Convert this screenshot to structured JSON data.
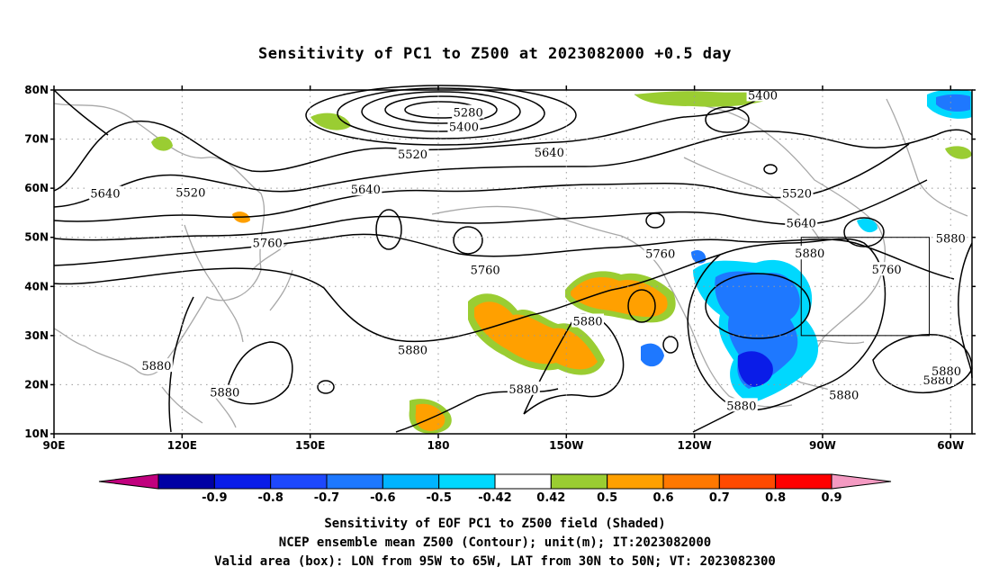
{
  "title": "Sensitivity of PC1 to Z500 at 2023082000 +0.5 day",
  "map": {
    "lon_range": [
      90,
      305
    ],
    "lat_range": [
      10,
      80
    ],
    "lat_ticks": [
      {
        "value": 80,
        "label": "80N"
      },
      {
        "value": 70,
        "label": "70N"
      },
      {
        "value": 60,
        "label": "60N"
      },
      {
        "value": 50,
        "label": "50N"
      },
      {
        "value": 40,
        "label": "40N"
      },
      {
        "value": 30,
        "label": "30N"
      },
      {
        "value": 20,
        "label": "20N"
      },
      {
        "value": 10,
        "label": "10N"
      }
    ],
    "lon_ticks": [
      {
        "value": 90,
        "label": "90E"
      },
      {
        "value": 120,
        "label": "120E"
      },
      {
        "value": 150,
        "label": "150E"
      },
      {
        "value": 180,
        "label": "180"
      },
      {
        "value": 210,
        "label": "150W"
      },
      {
        "value": 240,
        "label": "120W"
      },
      {
        "value": 270,
        "label": "90W"
      },
      {
        "value": 300,
        "label": "60W"
      }
    ],
    "valid_box": {
      "lon": [
        265,
        295
      ],
      "lat": [
        30,
        50
      ]
    },
    "contour_labels": [
      {
        "text": "5280",
        "lon": 187,
        "lat": 75.5
      },
      {
        "text": "5400",
        "lon": 186,
        "lat": 72.6
      },
      {
        "text": "5400",
        "lon": 256,
        "lat": 79.0
      },
      {
        "text": "5520",
        "lon": 174,
        "lat": 67.0
      },
      {
        "text": "5520",
        "lon": 122,
        "lat": 59.2
      },
      {
        "text": "5520",
        "lon": 264,
        "lat": 59.0
      },
      {
        "text": "5640",
        "lon": 102,
        "lat": 59.0
      },
      {
        "text": "5640",
        "lon": 163,
        "lat": 59.8
      },
      {
        "text": "5640",
        "lon": 206,
        "lat": 67.4
      },
      {
        "text": "5640",
        "lon": 265,
        "lat": 53.0
      },
      {
        "text": "5760",
        "lon": 140,
        "lat": 48.9
      },
      {
        "text": "5760",
        "lon": 191,
        "lat": 43.4
      },
      {
        "text": "5760",
        "lon": 232,
        "lat": 46.7
      },
      {
        "text": "5760",
        "lon": 285,
        "lat": 43.5
      },
      {
        "text": "5880",
        "lon": 267,
        "lat": 46.8
      },
      {
        "text": "5880",
        "lon": 300,
        "lat": 49.9
      },
      {
        "text": "5880",
        "lon": 215,
        "lat": 33.0
      },
      {
        "text": "5880",
        "lon": 174,
        "lat": 27.1
      },
      {
        "text": "5880",
        "lon": 114,
        "lat": 23.9
      },
      {
        "text": "5880",
        "lon": 130,
        "lat": 18.5
      },
      {
        "text": "5880",
        "lon": 200,
        "lat": 19.2
      },
      {
        "text": "5880",
        "lon": 251,
        "lat": 15.8
      },
      {
        "text": "5880",
        "lon": 275,
        "lat": 18.0
      },
      {
        "text": "5880",
        "lon": 297,
        "lat": 21.0
      },
      {
        "text": "5880",
        "lon": 299,
        "lat": 22.8
      }
    ]
  },
  "colorbar": {
    "segments": [
      {
        "color": "#c1007e"
      },
      {
        "color": "#0000a4"
      },
      {
        "color": "#0a1ce8"
      },
      {
        "color": "#1e48fc"
      },
      {
        "color": "#1e78ff"
      },
      {
        "color": "#00b4ff"
      },
      {
        "color": "#00d8fe"
      },
      {
        "color": "#ffffff"
      },
      {
        "color": "#9acd32"
      },
      {
        "color": "#ffa000"
      },
      {
        "color": "#ff7800"
      },
      {
        "color": "#ff4a00"
      },
      {
        "color": "#ff0000"
      },
      {
        "color": "#f49ac2"
      }
    ],
    "labels": [
      "-0.9",
      "-0.8",
      "-0.7",
      "-0.6",
      "-0.5",
      "-0.42",
      "0.42",
      "0.5",
      "0.6",
      "0.7",
      "0.8",
      "0.9"
    ]
  },
  "captions": [
    "Sensitivity of EOF PC1 to Z500 field (Shaded)",
    "NCEP ensemble mean Z500 (Contour); unit(m); IT:2023082000",
    "Valid area (box): LON from 95W to 65W, LAT from 30N to 50N; VT: 2023082300"
  ]
}
